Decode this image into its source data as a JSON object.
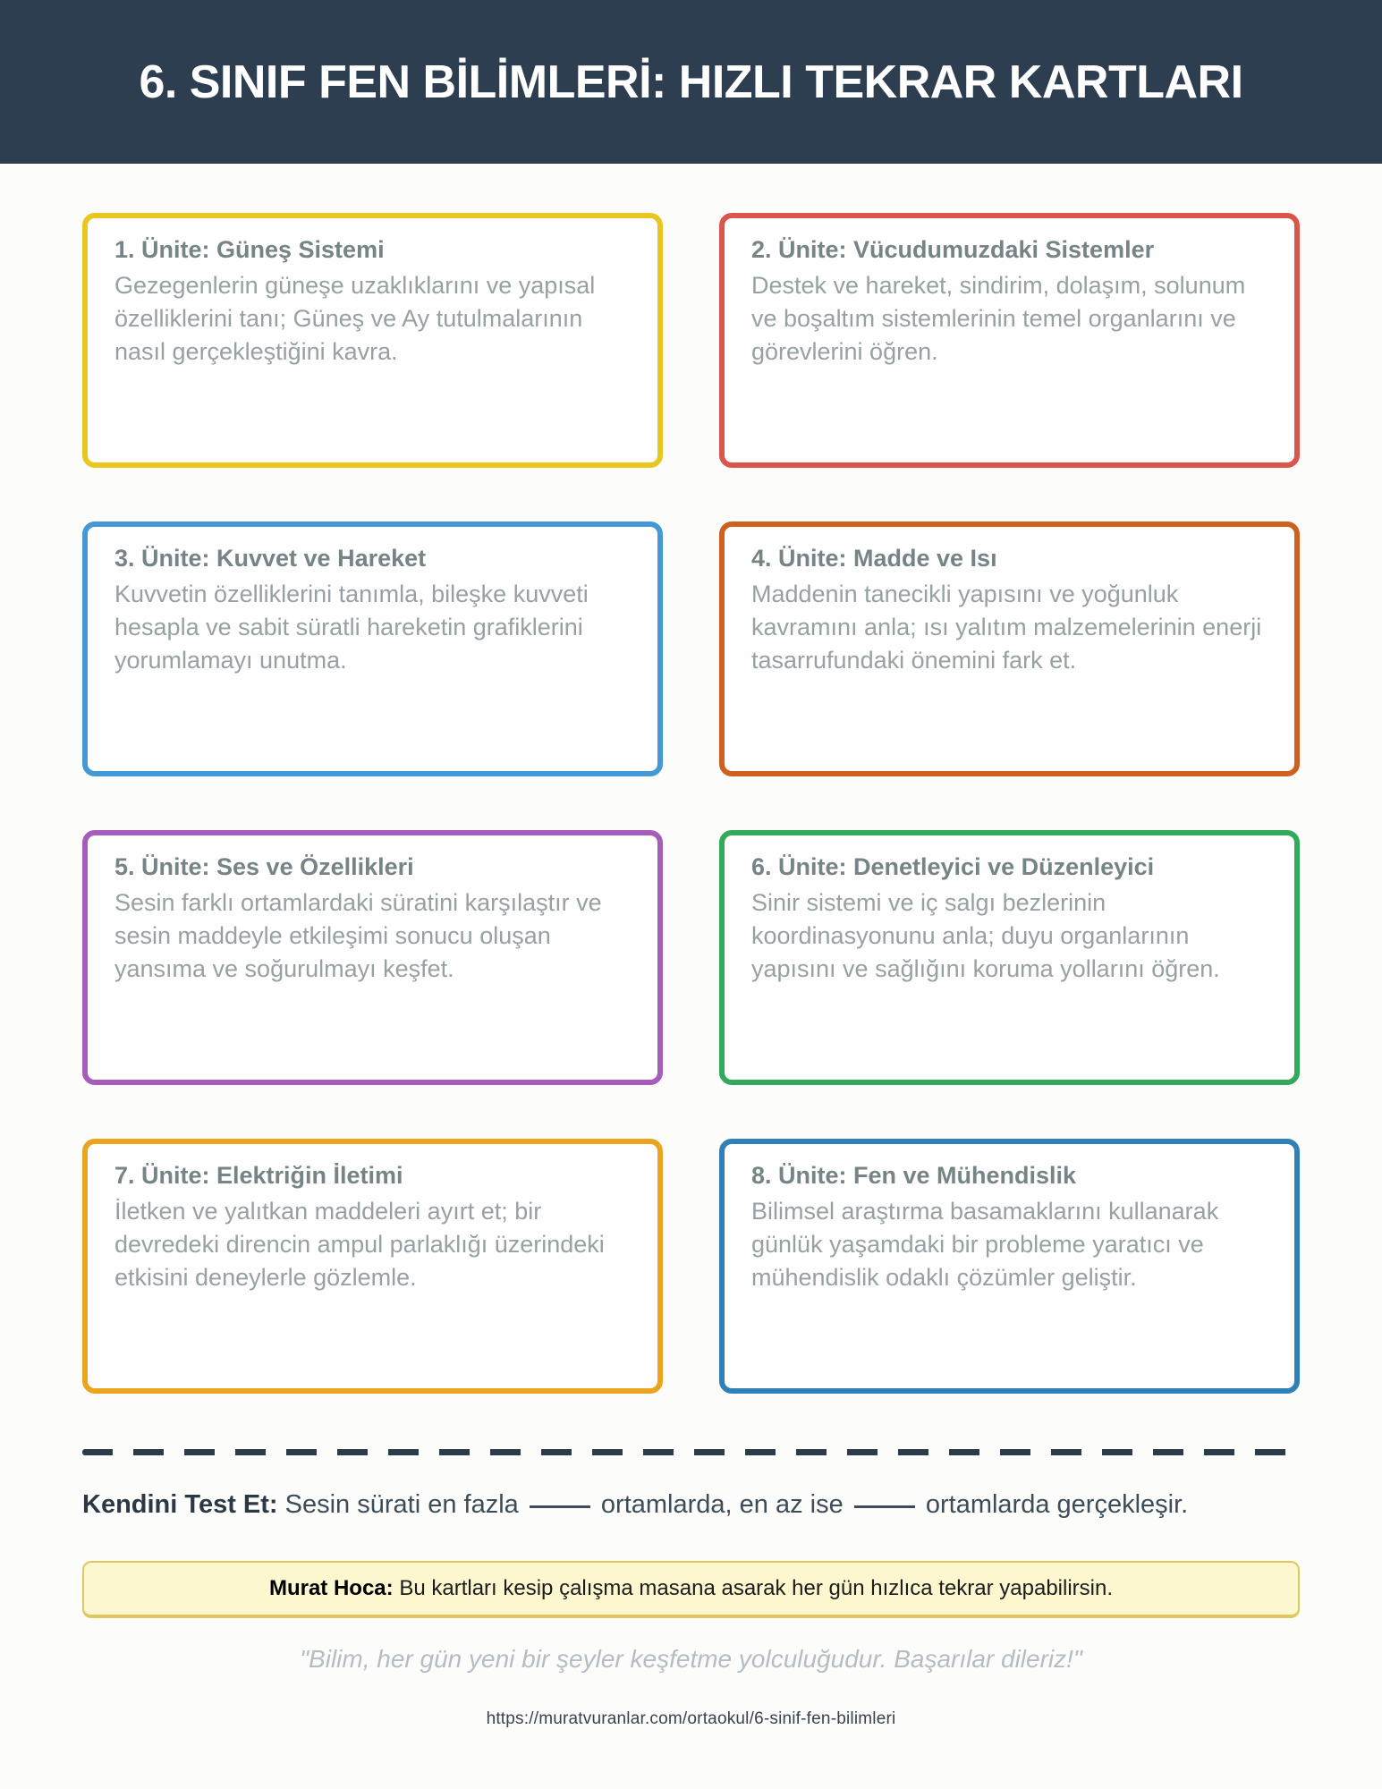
{
  "header": {
    "title": "6. SINIF FEN BİLİMLERİ: HIZLI TEKRAR KARTLARI"
  },
  "cards": [
    {
      "title": "1. Ünite: Güneş Sistemi",
      "body": "Gezegenlerin güneşe uzaklıklarını ve yapısal özelliklerini tanı; Güneş ve Ay tutulmalarının nasıl gerçekleştiğini kavra.",
      "border_color": "#e9c71f"
    },
    {
      "title": "2. Ünite: Vücudumuzdaki Sistemler",
      "body": "Destek ve hareket, sindirim, dolaşım, solunum ve boşaltım sistemlerinin temel organlarını ve görevlerini öğren.",
      "border_color": "#da554b"
    },
    {
      "title": "3. Ünite: Kuvvet ve Hareket",
      "body": "Kuvvetin özelliklerini tanımla, bileşke kuvveti hesapla ve sabit süratli hareketin grafiklerini yorumlamayı unutma.",
      "border_color": "#4398d5"
    },
    {
      "title": "4. Ünite: Madde ve Isı",
      "body": "Maddenin tanecikli yapısını ve yoğunluk kavramını anla; ısı yalıtım malzemelerinin enerji tasarrufundaki önemini fark et.",
      "border_color": "#cf6120"
    },
    {
      "title": "5. Ünite: Ses ve Özellikleri",
      "body": "Sesin farklı ortamlardaki süratini karşılaştır ve sesin maddeyle etkileşimi sonucu oluşan yansıma ve soğurulmayı keşfet.",
      "border_color": "#a55cba"
    },
    {
      "title": "6. Ünite: Denetleyici ve Düzenleyici",
      "body": "Sinir sistemi ve iç salgı bezlerinin koordinasyonunu anla; duyu organlarının yapısını ve sağlığını koruma yollarını öğren.",
      "border_color": "#33a95b"
    },
    {
      "title": "7. Ünite: Elektriğin İletimi",
      "body": "İletken ve yalıtkan maddeleri ayırt et; bir devredeki direncin ampul parlaklığı üzerindeki etkisini deneylerle gözlemle.",
      "border_color": "#eca41e"
    },
    {
      "title": "8. Ünite: Fen ve Mühendislik",
      "body": "Bilimsel araştırma basamaklarını kullanarak günlük yaşamdaki bir probleme yaratıcı ve mühendislik odaklı çözümler geliştir.",
      "border_color": "#2f80b6"
    }
  ],
  "self_test": {
    "label": "Kendini Test Et:",
    "segment1": "Sesin sürati en fazla",
    "segment2": "ortamlarda, en az ise",
    "segment3": "ortamlarda gerçekleşir."
  },
  "note": {
    "label": "Murat Hoca:",
    "text": "Bu kartları kesip çalışma masana asarak her gün hızlıca tekrar yapabilirsin."
  },
  "quote": "\"Bilim, her gün yeni bir şeyler keşfetme yolculuğudur. Başarılar dileriz!\"",
  "footer_url": "https://muratvuranlar.com/ortaokul/6-sinif-fen-bilimleri",
  "colors": {
    "header_bg": "#2d3e50",
    "page_bg": "#fcfcfb",
    "card_title": "#768487",
    "card_body": "#97a1a3",
    "divider": "#2d3a48",
    "note_bg": "#fdf7cf",
    "note_border": "#dfc75e",
    "quote": "#b5bcc2"
  }
}
